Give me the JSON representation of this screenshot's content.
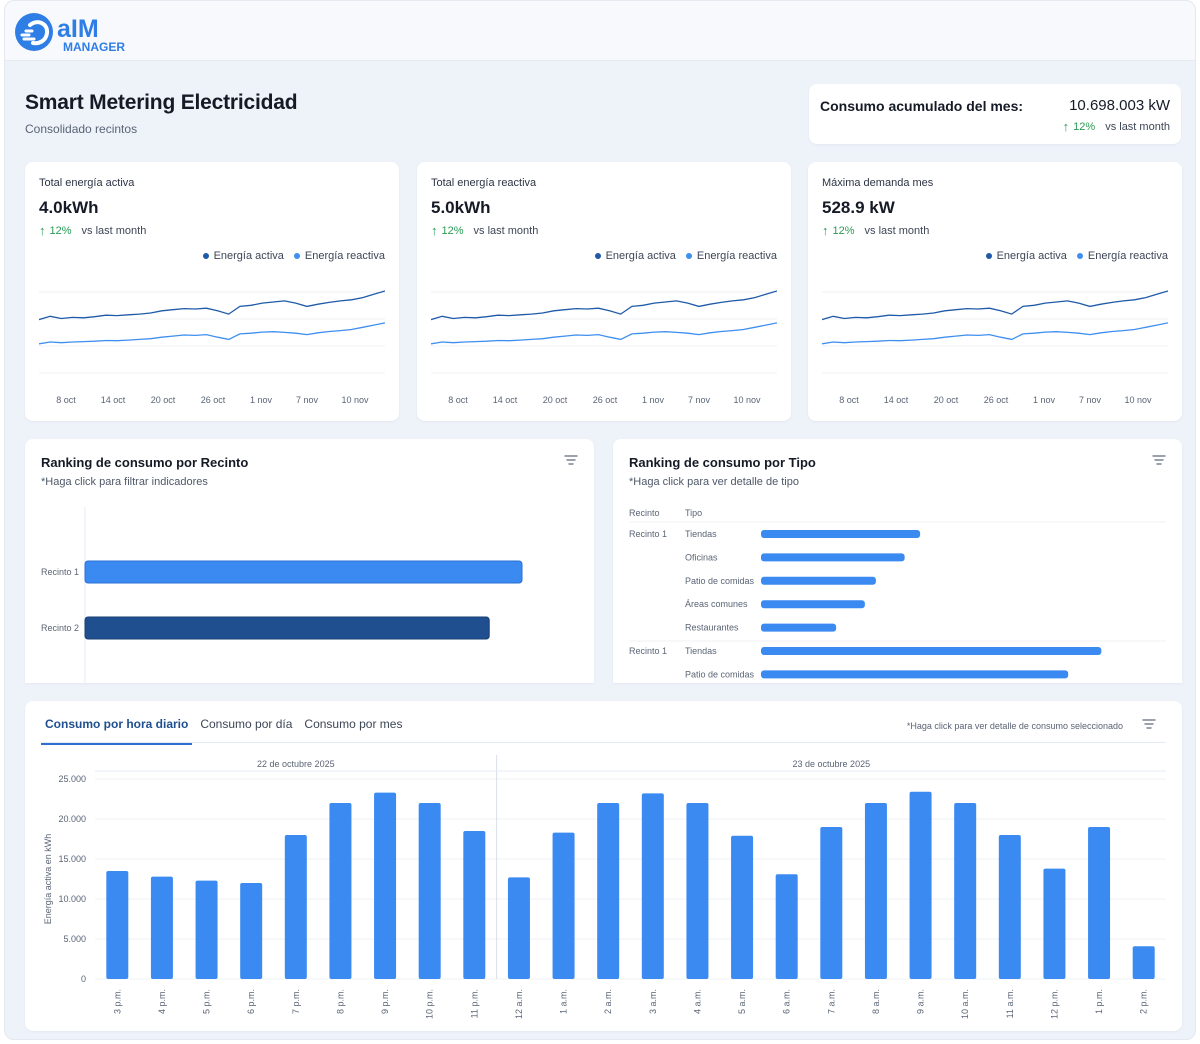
{
  "brand": {
    "line1": "aIM",
    "line2": "MANAGER",
    "color": "#2f7ee6"
  },
  "header": {
    "title": "Smart Metering Electricidad",
    "subtitle": "Consolidado recintos"
  },
  "accumulated": {
    "label": "Consumo acumulado del mes:",
    "value": "10.698.003 kW",
    "pct": "12%",
    "vs": "vs last month"
  },
  "colors": {
    "active": "#1f5aa8",
    "reactive": "#3f8ff0",
    "bar": "#3a8af2",
    "bar_dark": "#1f4f8f",
    "positive": "#2a9a55"
  },
  "kpis": [
    {
      "title": "Total energía activa",
      "value": "4.0kWh",
      "pct": "12%",
      "vs": "vs last month",
      "legend_active": "Energía activa",
      "legend_reactive": "Energía reactiva"
    },
    {
      "title": "Total energía reactiva",
      "value": "5.0kWh",
      "pct": "12%",
      "vs": "vs last month",
      "legend_active": "Energía activa",
      "legend_reactive": "Energía reactiva"
    },
    {
      "title": "Máxima demanda mes",
      "value": "528.9 kW",
      "pct": "12%",
      "vs": "vs last month",
      "legend_active": "Energía activa",
      "legend_reactive": "Energía reactiva"
    }
  ],
  "ranking_recinto": {
    "title": "Ranking de consumo por Recinto",
    "subtitle": "*Haga click para filtrar indicadores"
  },
  "ranking_tipo": {
    "title": "Ranking de consumo por Tipo",
    "subtitle": "*Haga click para ver detalle de tipo",
    "col_recinto": "Recinto",
    "col_tipo": "Tipo"
  },
  "bottom": {
    "tabs": [
      "Consumo por hora diario",
      "Consumo por día",
      "Consumo por mes"
    ],
    "note": "*Haga click para ver detalle de consumo seleccionado"
  },
  "chart_data": [
    {
      "type": "line",
      "x_ticks": [
        "8 oct",
        "14 oct",
        "20 oct",
        "26 oct",
        "1 nov",
        "7 nov",
        "10 nov"
      ],
      "series": [
        {
          "name": "Energía activa",
          "values": [
            3.2,
            3.35,
            3.25,
            3.3,
            3.28,
            3.33,
            3.4,
            3.38,
            3.42,
            3.45,
            3.5,
            3.6,
            3.65,
            3.7,
            3.68,
            3.72,
            3.6,
            3.45,
            3.8,
            3.85,
            3.95,
            4.0,
            4.05,
            3.95,
            3.8,
            3.9,
            3.98,
            4.05,
            4.1,
            4.2,
            4.35,
            4.5
          ]
        },
        {
          "name": "Energía reactiva",
          "values": [
            2.1,
            2.18,
            2.15,
            2.18,
            2.2,
            2.22,
            2.25,
            2.24,
            2.27,
            2.3,
            2.33,
            2.4,
            2.45,
            2.5,
            2.48,
            2.52,
            2.4,
            2.3,
            2.55,
            2.58,
            2.63,
            2.65,
            2.62,
            2.58,
            2.52,
            2.6,
            2.66,
            2.7,
            2.75,
            2.85,
            2.95,
            3.05
          ]
        }
      ]
    },
    {
      "type": "line",
      "x_ticks": [
        "8 oct",
        "14 oct",
        "20 oct",
        "26 oct",
        "1 nov",
        "7 nov",
        "10 nov"
      ],
      "series": [
        {
          "name": "Energía activa",
          "values": [
            3.2,
            3.35,
            3.25,
            3.3,
            3.28,
            3.33,
            3.4,
            3.38,
            3.42,
            3.45,
            3.5,
            3.6,
            3.65,
            3.7,
            3.68,
            3.72,
            3.6,
            3.45,
            3.8,
            3.85,
            3.95,
            4.0,
            4.05,
            3.95,
            3.8,
            3.9,
            3.98,
            4.05,
            4.1,
            4.2,
            4.35,
            4.5
          ]
        },
        {
          "name": "Energía reactiva",
          "values": [
            2.1,
            2.18,
            2.15,
            2.18,
            2.2,
            2.22,
            2.25,
            2.24,
            2.27,
            2.3,
            2.33,
            2.4,
            2.45,
            2.5,
            2.48,
            2.52,
            2.4,
            2.3,
            2.55,
            2.58,
            2.63,
            2.65,
            2.62,
            2.58,
            2.52,
            2.6,
            2.66,
            2.7,
            2.75,
            2.85,
            2.95,
            3.05
          ]
        }
      ]
    },
    {
      "type": "line",
      "x_ticks": [
        "8 oct",
        "14 oct",
        "20 oct",
        "26 oct",
        "1 nov",
        "7 nov",
        "10 nov"
      ],
      "series": [
        {
          "name": "Energía activa",
          "values": [
            3.2,
            3.35,
            3.25,
            3.3,
            3.28,
            3.33,
            3.4,
            3.38,
            3.42,
            3.45,
            3.5,
            3.6,
            3.65,
            3.7,
            3.68,
            3.72,
            3.6,
            3.45,
            3.8,
            3.85,
            3.95,
            4.0,
            4.05,
            3.95,
            3.8,
            3.9,
            3.98,
            4.05,
            4.1,
            4.2,
            4.35,
            4.5
          ]
        },
        {
          "name": "Energía reactiva",
          "values": [
            2.1,
            2.18,
            2.15,
            2.18,
            2.2,
            2.22,
            2.25,
            2.24,
            2.27,
            2.3,
            2.33,
            2.4,
            2.45,
            2.5,
            2.48,
            2.52,
            2.4,
            2.3,
            2.55,
            2.58,
            2.63,
            2.65,
            2.62,
            2.58,
            2.52,
            2.6,
            2.66,
            2.7,
            2.75,
            2.85,
            2.95,
            3.05
          ]
        }
      ]
    },
    {
      "type": "bar",
      "orientation": "horizontal",
      "categories": [
        "Recinto 1",
        "Recinto 2"
      ],
      "values": [
        100,
        92.5
      ]
    },
    {
      "type": "bar",
      "orientation": "horizontal",
      "rows": [
        {
          "recinto": "Recinto 1",
          "tipo": "Tiendas",
          "value": 36
        },
        {
          "recinto": "",
          "tipo": "Oficinas",
          "value": 32.5
        },
        {
          "recinto": "",
          "tipo": "Patio de comidas",
          "value": 26
        },
        {
          "recinto": "",
          "tipo": "Áreas comunes",
          "value": 23.5
        },
        {
          "recinto": "",
          "tipo": "Restaurantes",
          "value": 17
        },
        {
          "recinto": "Recinto 1",
          "tipo": "Tiendas",
          "value": 77
        },
        {
          "recinto": "",
          "tipo": "Patio de comidas",
          "value": 69.5
        }
      ]
    },
    {
      "type": "bar",
      "ylabel": "Energía activa en kWh",
      "ylim": [
        0,
        25000
      ],
      "y_ticks": [
        "0",
        "5.000",
        "10.000",
        "15.000",
        "20.000",
        "25.000"
      ],
      "groups": [
        {
          "label": "22 de octubre 2025",
          "count": 9
        },
        {
          "label": "23 de octubre 2025",
          "count": 15
        }
      ],
      "categories": [
        "3 p.m.",
        "4 p.m.",
        "5 p.m.",
        "6 p.m.",
        "7 p.m.",
        "8 p.m.",
        "9 p.m.",
        "10 p.m.",
        "11 p.m.",
        "12 a.m.",
        "1 a.m.",
        "2 a.m.",
        "3 a.m.",
        "4 a.m.",
        "5 a.m.",
        "6 a.m.",
        "7 a.m.",
        "8 a.m.",
        "9 a.m.",
        "10 a.m.",
        "11 a.m.",
        "12 p.m.",
        "1 p.m.",
        "2 p.m."
      ],
      "values": [
        13500,
        12800,
        12300,
        12000,
        18000,
        22000,
        23300,
        22000,
        18500,
        12700,
        18300,
        22000,
        23200,
        22000,
        17900,
        13100,
        19000,
        22000,
        23400,
        22000,
        18000,
        13800,
        19000,
        4100
      ]
    }
  ]
}
